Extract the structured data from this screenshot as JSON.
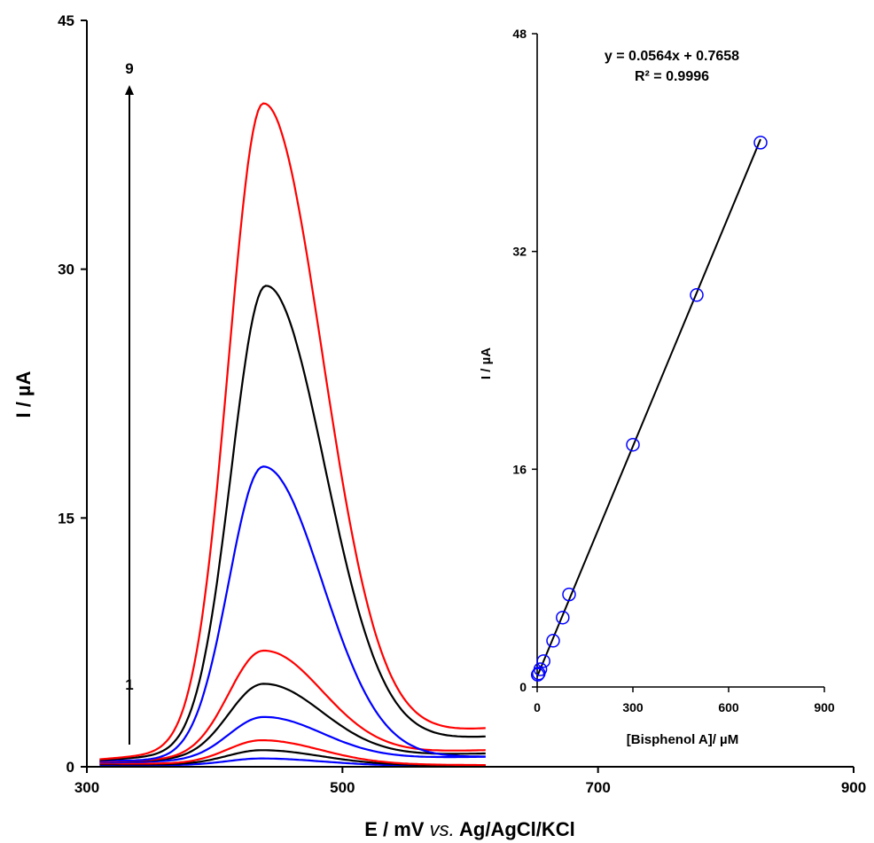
{
  "chart_data": [
    {
      "type": "line",
      "xlabel_main": "E / mV ",
      "xlabel_italic": "vs.",
      "xlabel_rest": " Ag/AgCl/KCl",
      "ylabel": "I / µA",
      "xlim": [
        300,
        900
      ],
      "ylim": [
        0,
        45
      ],
      "x_ticks": [
        "300",
        "500",
        "700",
        "900"
      ],
      "y_ticks": [
        "0",
        "15",
        "30",
        "45"
      ],
      "arrow_start_label": "1",
      "arrow_end_label": "9",
      "series": [
        {
          "color": "#0000ff",
          "baseline_start": 0.1,
          "baseline_end": 0.05,
          "peak_x": 437,
          "peak_y": 0.5
        },
        {
          "color": "#000000",
          "baseline_start": 0.15,
          "baseline_end": 0.08,
          "peak_x": 437,
          "peak_y": 1.0
        },
        {
          "color": "#ff0000",
          "baseline_start": 0.2,
          "baseline_end": 0.1,
          "peak_x": 437,
          "peak_y": 1.6
        },
        {
          "color": "#0000ff",
          "baseline_start": 0.25,
          "baseline_end": 0.6,
          "peak_x": 438,
          "peak_y": 3.0
        },
        {
          "color": "#000000",
          "baseline_start": 0.3,
          "baseline_end": 0.8,
          "peak_x": 438,
          "peak_y": 5.0
        },
        {
          "color": "#ff0000",
          "baseline_start": 0.3,
          "baseline_end": 1.0,
          "peak_x": 438,
          "peak_y": 7.0
        },
        {
          "color": "#0000ff",
          "baseline_start": 0.35,
          "baseline_end": 0.6,
          "peak_x": 438,
          "peak_y": 18.1
        },
        {
          "color": "#000000",
          "baseline_start": 0.4,
          "baseline_end": 1.8,
          "peak_x": 440,
          "peak_y": 29.0
        },
        {
          "color": "#ff0000",
          "baseline_start": 0.45,
          "baseline_end": 2.3,
          "peak_x": 438,
          "peak_y": 40.0
        }
      ]
    },
    {
      "type": "scatter",
      "xlabel": "[Bisphenol A]/ µM",
      "ylabel": "I / µA",
      "xlim": [
        0,
        900
      ],
      "ylim": [
        0,
        48
      ],
      "x_ticks": [
        "0",
        "300",
        "600",
        "900"
      ],
      "y_ticks": [
        "0",
        "16",
        "32",
        "48"
      ],
      "equation": "y = 0.0564x + 0.7658",
      "r_squared": "R² =  0.9996",
      "fit": {
        "slope": 0.0564,
        "intercept": 0.7658
      },
      "points": [
        {
          "x": 2,
          "y": 0.9
        },
        {
          "x": 5,
          "y": 1.0
        },
        {
          "x": 10,
          "y": 1.3
        },
        {
          "x": 20,
          "y": 1.9
        },
        {
          "x": 50,
          "y": 3.4
        },
        {
          "x": 80,
          "y": 5.1
        },
        {
          "x": 100,
          "y": 6.8
        },
        {
          "x": 300,
          "y": 17.8
        },
        {
          "x": 500,
          "y": 28.8
        },
        {
          "x": 700,
          "y": 40.0
        }
      ]
    }
  ],
  "colors": {
    "circle": "#0000ff",
    "axis": "#000000"
  }
}
